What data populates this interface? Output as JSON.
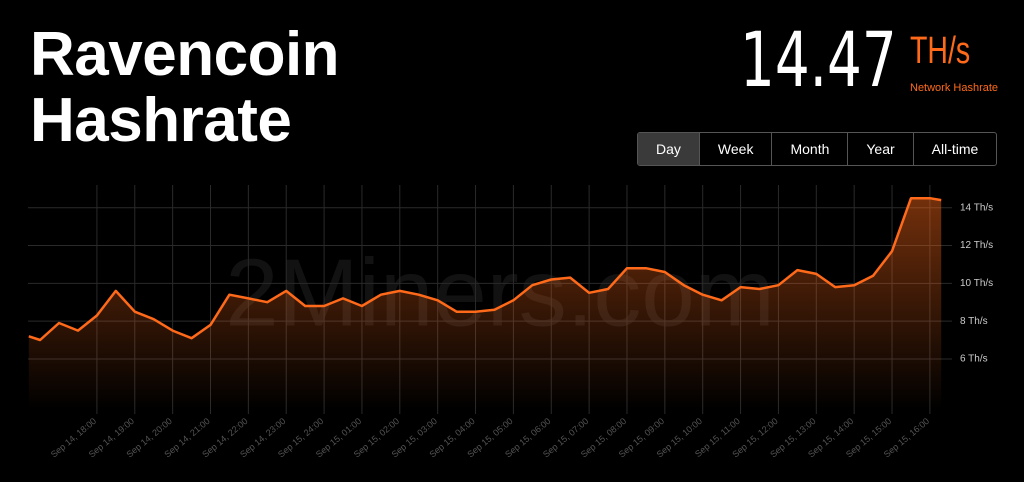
{
  "header": {
    "title_line1": "Ravencoin",
    "title_line2": "Hashrate",
    "stat_value": "14.47",
    "stat_unit": "TH/s",
    "stat_caption": "Network Hashrate"
  },
  "range_buttons": [
    "Day",
    "Week",
    "Month",
    "Year",
    "All-time"
  ],
  "active_button": 0,
  "watermark": "2Miners.com",
  "chart_data": {
    "type": "area",
    "x": [
      16.2,
      16.5,
      17,
      17.5,
      18,
      18.5,
      19,
      19.5,
      20,
      20.5,
      21,
      21.5,
      22,
      22.5,
      23,
      23.5,
      24,
      24.5,
      25,
      25.5,
      26,
      26.5,
      27,
      27.5,
      28,
      28.5,
      29,
      29.5,
      30,
      30.5,
      31,
      31.5,
      32,
      32.5,
      33,
      33.5,
      34,
      34.5,
      35,
      35.5,
      36,
      36.5,
      37,
      37.5,
      38,
      38.5,
      39,
      39.5,
      40,
      40.3
    ],
    "series": [
      {
        "name": "Hashrate",
        "color": "#ff6a1a",
        "values": [
          7.2,
          7.0,
          7.9,
          7.5,
          8.3,
          9.6,
          8.5,
          8.1,
          7.5,
          7.1,
          7.8,
          9.4,
          9.2,
          9.0,
          9.6,
          8.8,
          8.8,
          9.2,
          8.8,
          9.4,
          9.6,
          9.4,
          9.1,
          8.5,
          8.5,
          8.6,
          9.1,
          9.9,
          10.2,
          10.3,
          9.5,
          9.7,
          10.8,
          10.8,
          10.6,
          9.9,
          9.4,
          9.1,
          9.8,
          9.7,
          9.9,
          10.7,
          10.5,
          9.8,
          9.9,
          10.4,
          11.7,
          14.5,
          14.5,
          14.4
        ]
      }
    ],
    "xlim": [
      16.18,
      40.32
    ],
    "xticks": [
      {
        "value": 18,
        "label": "Sep 14, 18:00"
      },
      {
        "value": 19,
        "label": "Sep 14, 19:00"
      },
      {
        "value": 20,
        "label": "Sep 14, 20:00"
      },
      {
        "value": 21,
        "label": "Sep 14, 21:00"
      },
      {
        "value": 22,
        "label": "Sep 14, 22:00"
      },
      {
        "value": 23,
        "label": "Sep 14, 23:00"
      },
      {
        "value": 24,
        "label": "Sep 15, 24:00"
      },
      {
        "value": 25,
        "label": "Sep 15, 01:00"
      },
      {
        "value": 26,
        "label": "Sep 15, 02:00"
      },
      {
        "value": 27,
        "label": "Sep 15, 03:00"
      },
      {
        "value": 28,
        "label": "Sep 15, 04:00"
      },
      {
        "value": 29,
        "label": "Sep 15, 05:00"
      },
      {
        "value": 30,
        "label": "Sep 15, 06:00"
      },
      {
        "value": 31,
        "label": "Sep 15, 07:00"
      },
      {
        "value": 32,
        "label": "Sep 15, 08:00"
      },
      {
        "value": 33,
        "label": "Sep 15, 09:00"
      },
      {
        "value": 34,
        "label": "Sep 15, 10:00"
      },
      {
        "value": 35,
        "label": "Sep 15, 11:00"
      },
      {
        "value": 36,
        "label": "Sep 15, 12:00"
      },
      {
        "value": 37,
        "label": "Sep 15, 13:00"
      },
      {
        "value": 38,
        "label": "Sep 15, 14:00"
      },
      {
        "value": 39,
        "label": "Sep 15, 15:00"
      },
      {
        "value": 40,
        "label": "Sep 15, 16:00"
      }
    ],
    "ylim": [
      3.3,
      15.2
    ],
    "yticks": [
      {
        "value": 6,
        "label": "6 Th/s"
      },
      {
        "value": 8,
        "label": "8 Th/s"
      },
      {
        "value": 10,
        "label": "10 Th/s"
      },
      {
        "value": 12,
        "label": "12 Th/s"
      },
      {
        "value": 14,
        "label": "14 Th/s"
      }
    ],
    "grid": true
  }
}
